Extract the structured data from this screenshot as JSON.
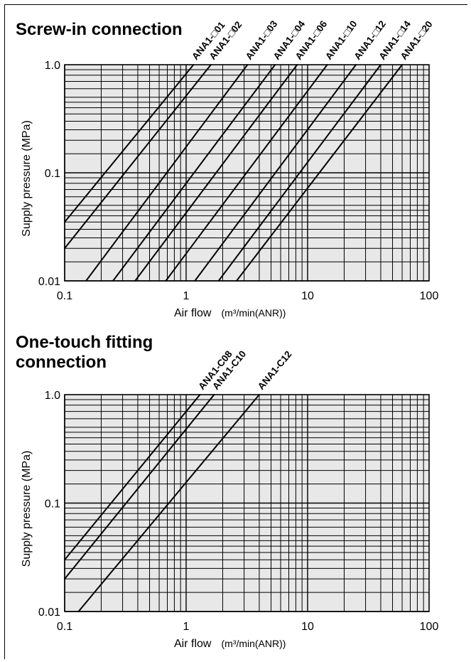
{
  "chart_data": [
    {
      "type": "line",
      "title": "Screw-in connection",
      "xlabel": "Air flow",
      "xunit": "(m³/min(ANR))",
      "ylabel": "Supply pressure (MPa)",
      "x_scale": "log",
      "y_scale": "log",
      "xlim": [
        0.1,
        100
      ],
      "ylim": [
        0.01,
        1.0
      ],
      "x_ticks": [
        "0.1",
        "1",
        "10",
        "100"
      ],
      "y_ticks": [
        "0.01",
        "0.1",
        "1.0"
      ],
      "grid": true,
      "series": [
        {
          "name": "ANA1-□01",
          "points": [
            [
              0.1,
              0.035
            ],
            [
              1.15,
              1.0
            ]
          ]
        },
        {
          "name": "ANA1-□02",
          "points": [
            [
              0.1,
              0.02
            ],
            [
              1.6,
              1.0
            ]
          ]
        },
        {
          "name": "ANA1-□03",
          "points": [
            [
              0.15,
              0.01
            ],
            [
              3.2,
              1.0
            ]
          ]
        },
        {
          "name": "ANA1-□04",
          "points": [
            [
              0.25,
              0.01
            ],
            [
              5.4,
              1.0
            ]
          ]
        },
        {
          "name": "ANA1-□06",
          "points": [
            [
              0.38,
              0.01
            ],
            [
              8.2,
              1.0
            ]
          ]
        },
        {
          "name": "ANA1-□10",
          "points": [
            [
              0.68,
              0.01
            ],
            [
              14.5,
              1.0
            ]
          ]
        },
        {
          "name": "ANA1-□12",
          "points": [
            [
              1.18,
              0.01
            ],
            [
              25,
              1.0
            ]
          ]
        },
        {
          "name": "ANA1-□14",
          "points": [
            [
              1.85,
              0.01
            ],
            [
              40,
              1.0
            ]
          ]
        },
        {
          "name": "ANA1-□20",
          "points": [
            [
              2.6,
              0.01
            ],
            [
              60,
              1.0
            ]
          ]
        }
      ]
    },
    {
      "type": "line",
      "title": "One-touch fitting connection",
      "xlabel": "Air flow",
      "xunit": "(m³/min(ANR))",
      "ylabel": "Supply pressure (MPa)",
      "x_scale": "log",
      "y_scale": "log",
      "xlim": [
        0.1,
        100
      ],
      "ylim": [
        0.01,
        1.0
      ],
      "x_ticks": [
        "0.1",
        "1",
        "10",
        "100"
      ],
      "y_ticks": [
        "0.01",
        "0.1",
        "1.0"
      ],
      "grid": true,
      "series": [
        {
          "name": "ANA1-C08",
          "points": [
            [
              0.1,
              0.03
            ],
            [
              1.3,
              1.0
            ]
          ]
        },
        {
          "name": "ANA1-C10",
          "points": [
            [
              0.1,
              0.02
            ],
            [
              1.7,
              1.0
            ]
          ]
        },
        {
          "name": "ANA1-C12",
          "points": [
            [
              0.13,
              0.01
            ],
            [
              4.0,
              1.0
            ]
          ]
        }
      ]
    }
  ]
}
